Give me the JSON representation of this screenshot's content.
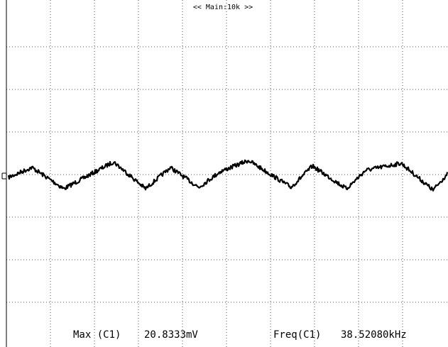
{
  "header": {
    "timebase": "<< Main:10k >>"
  },
  "measurements": [
    {
      "label": "Max (C1)",
      "value": "20.8333mV"
    },
    {
      "label": "Freq(C1)",
      "value": "38.52080kHz"
    }
  ]
}
